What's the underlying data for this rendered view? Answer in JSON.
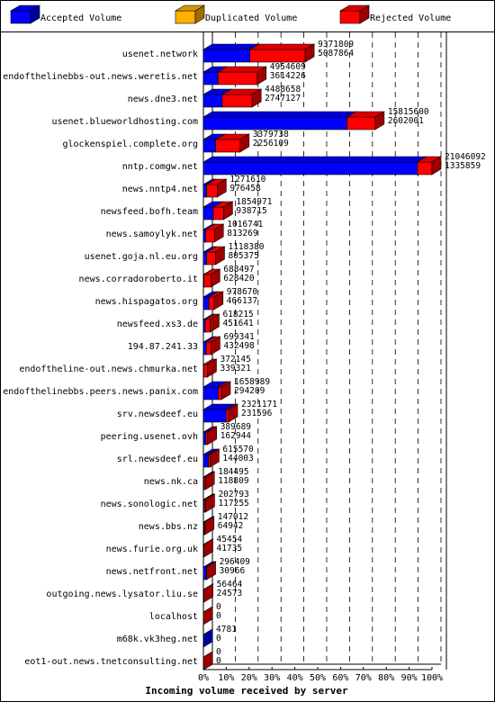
{
  "chart_data": {
    "type": "bar",
    "title": "",
    "xlabel": "Incoming volume received by server",
    "ylabel": "",
    "xlim": [
      0,
      100
    ],
    "x_ticks": [
      "0%",
      "10%",
      "20%",
      "30%",
      "40%",
      "50%",
      "60%",
      "70%",
      "80%",
      "90%",
      "100%"
    ],
    "grid": true,
    "legend_position": "top",
    "series_info": [
      {
        "key": "accepted",
        "name": "Accepted Volume",
        "color": "#0000ff"
      },
      {
        "key": "duplicated",
        "name": "Duplicated Volume",
        "color": "#ffb000"
      },
      {
        "key": "rejected",
        "name": "Rejected Volume",
        "color": "#ff0000"
      }
    ],
    "rows": [
      {
        "server": "usenet.network",
        "total": "9371809",
        "rejected": "5087864"
      },
      {
        "server": "endofthelinebbs-out.news.weretis.net",
        "total": "4954609",
        "rejected": "3614226"
      },
      {
        "server": "news.dne3.net",
        "total": "4488658",
        "rejected": "2747127"
      },
      {
        "server": "usenet.blueworldhosting.com",
        "total": "15815600",
        "rejected": "2602001"
      },
      {
        "server": "glockenspiel.complete.org",
        "total": "3379738",
        "rejected": "2256109"
      },
      {
        "server": "nntp.comgw.net",
        "total": "21046092",
        "rejected": "1335859"
      },
      {
        "server": "news.nntp4.net",
        "total": "1271610",
        "rejected": "976458"
      },
      {
        "server": "newsfeed.bofh.team",
        "total": "1854971",
        "rejected": "938715"
      },
      {
        "server": "news.samoylyk.net",
        "total": "1016741",
        "rejected": "813269"
      },
      {
        "server": "usenet.goja.nl.eu.org",
        "total": "1118380",
        "rejected": "805375"
      },
      {
        "server": "news.corradoroberto.it",
        "total": "688497",
        "rejected": "628420"
      },
      {
        "server": "news.hispagatos.org",
        "total": "978670",
        "rejected": "466137"
      },
      {
        "server": "newsfeed.xs3.de",
        "total": "618215",
        "rejected": "451641"
      },
      {
        "server": "194.87.241.33",
        "total": "699341",
        "rejected": "432498"
      },
      {
        "server": "endoftheline-out.news.chmurka.net",
        "total": "372145",
        "rejected": "339321"
      },
      {
        "server": "endofthelinebbs.peers.news.panix.com",
        "total": "1658989",
        "rejected": "294209"
      },
      {
        "server": "srv.newsdeef.eu",
        "total": "2321171",
        "rejected": "231596"
      },
      {
        "server": "peering.usenet.ovh",
        "total": "389689",
        "rejected": "162944"
      },
      {
        "server": "srl.newsdeef.eu",
        "total": "615570",
        "rejected": "144003"
      },
      {
        "server": "news.nk.ca",
        "total": "184495",
        "rejected": "118809"
      },
      {
        "server": "news.sonologic.net",
        "total": "202793",
        "rejected": "117255"
      },
      {
        "server": "news.bbs.nz",
        "total": "147012",
        "rejected": "64942"
      },
      {
        "server": "news.furie.org.uk",
        "total": "45454",
        "rejected": "41735"
      },
      {
        "server": "news.netfront.net",
        "total": "296409",
        "rejected": "30966"
      },
      {
        "server": "outgoing.news.lysator.liu.se",
        "total": "56464",
        "rejected": "24573"
      },
      {
        "server": "localhost",
        "total": "0",
        "rejected": "0"
      },
      {
        "server": "m68k.vk3heg.net",
        "total": "4781",
        "rejected": "0"
      },
      {
        "server": "eot1-out.news.tnetconsulting.net",
        "total": "0",
        "rejected": "0"
      }
    ],
    "max_total": 21046092
  }
}
